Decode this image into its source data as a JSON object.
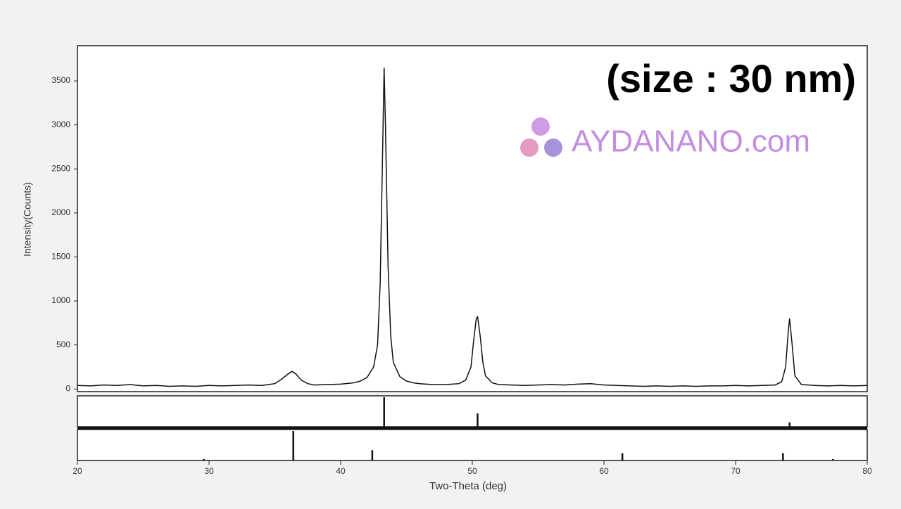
{
  "chart_data": {
    "type": "line",
    "annotation": "(size : 30 nm)",
    "watermark": "AYDANANO.com",
    "x_label": "Two-Theta (deg)",
    "y_label": "Intensity(Counts)",
    "color": "#111111",
    "x": [
      20,
      21,
      22,
      23,
      24,
      25,
      26,
      27,
      28,
      29,
      30,
      31,
      32,
      33,
      34,
      35,
      35.5,
      36,
      36.3,
      36.6,
      37,
      37.5,
      38,
      39,
      40,
      41,
      41.5,
      42,
      42.5,
      42.8,
      43,
      43.2,
      43.3,
      43.4,
      43.6,
      43.8,
      44,
      44.5,
      45,
      45.5,
      46,
      47,
      48,
      49,
      49.5,
      49.9,
      50.1,
      50.3,
      50.4,
      50.6,
      50.8,
      51,
      51.5,
      52,
      53,
      54,
      55,
      56,
      57,
      58,
      59,
      60,
      61,
      62,
      63,
      64,
      65,
      66,
      67,
      68,
      69,
      70,
      71,
      72,
      73,
      73.5,
      73.8,
      74,
      74.1,
      74.3,
      74.5,
      75,
      76,
      77,
      78,
      79,
      80
    ],
    "values": [
      40,
      35,
      45,
      40,
      50,
      35,
      40,
      30,
      35,
      30,
      40,
      35,
      40,
      45,
      40,
      60,
      110,
      170,
      200,
      170,
      100,
      60,
      45,
      50,
      55,
      70,
      90,
      130,
      250,
      500,
      1200,
      2800,
      3650,
      3000,
      1400,
      600,
      300,
      140,
      90,
      70,
      60,
      50,
      50,
      60,
      100,
      250,
      550,
      800,
      820,
      600,
      300,
      150,
      70,
      50,
      45,
      40,
      45,
      50,
      45,
      55,
      60,
      45,
      40,
      35,
      30,
      35,
      30,
      35,
      30,
      35,
      35,
      40,
      35,
      40,
      45,
      80,
      250,
      650,
      800,
      500,
      150,
      50,
      40,
      35,
      40,
      35,
      40
    ],
    "xlim": [
      20,
      80
    ],
    "xticks": [
      20,
      30,
      40,
      50,
      60,
      70,
      80
    ],
    "ylim": [
      -30,
      3900
    ],
    "yticks": [
      0,
      500,
      1000,
      1500,
      2000,
      2500,
      3000,
      3500
    ],
    "reference_patterns": [
      {
        "x": [
          43.3,
          50.4,
          74.1
        ],
        "values": [
          100,
          45,
          15
        ],
        "ylim": [
          0,
          100
        ]
      },
      {
        "x": [
          29.6,
          36.4,
          42.4,
          61.4,
          73.6,
          77.4
        ],
        "values": [
          5,
          100,
          35,
          25,
          25,
          5
        ],
        "ylim": [
          0,
          100
        ]
      }
    ]
  }
}
